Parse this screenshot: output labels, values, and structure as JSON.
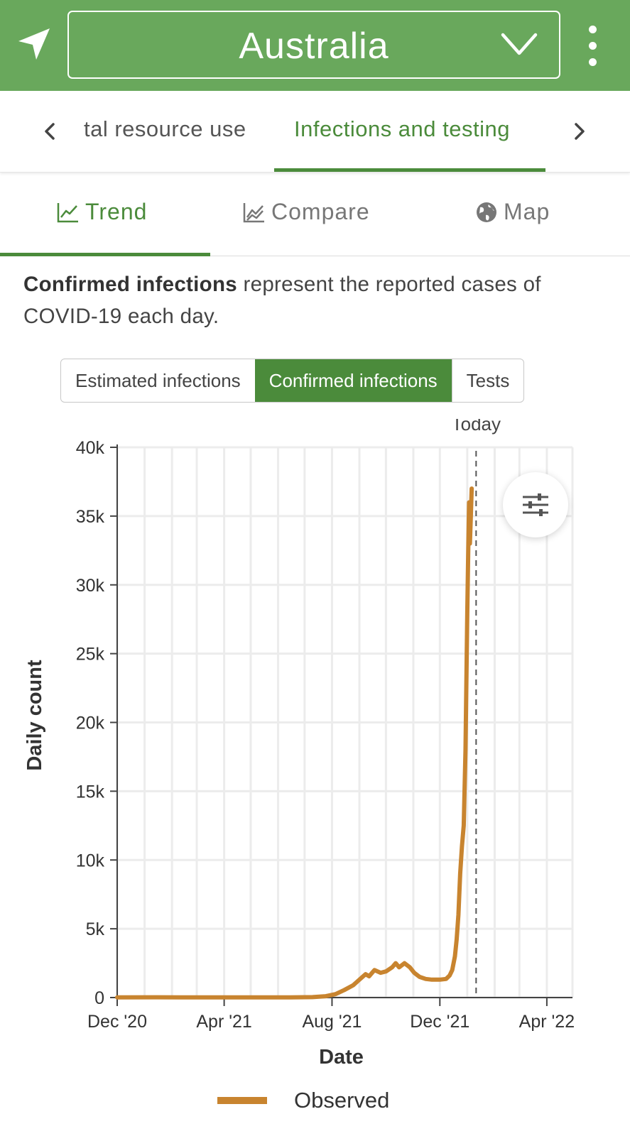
{
  "header": {
    "country": "Australia",
    "location_icon": "location-arrow-icon",
    "dropdown_icon": "chevron-down-icon",
    "menu_icon": "more-vertical-icon",
    "bar_color": "#69a85c"
  },
  "category_tabs": {
    "items": [
      {
        "label": "tal resource use",
        "active": false
      },
      {
        "label": "Infections and testing",
        "active": true
      }
    ],
    "prev_icon": "chevron-left-icon",
    "next_icon": "chevron-right-icon"
  },
  "view_tabs": {
    "items": [
      {
        "label": "Trend",
        "icon": "line-chart-icon",
        "active": true
      },
      {
        "label": "Compare",
        "icon": "multi-line-chart-icon",
        "active": false
      },
      {
        "label": "Map",
        "icon": "globe-icon",
        "active": false
      }
    ],
    "accent": "#4b8b3b"
  },
  "description": {
    "bold": "Confirmed infections",
    "rest": " represent the reported cases of COVID-19 each day."
  },
  "metric_selector": {
    "options": [
      "Estimated infections",
      "Confirmed infections",
      "Tests"
    ],
    "selected": "Confirmed infections"
  },
  "chart_controls": {
    "filter_icon": "sliders-icon"
  },
  "chart_data": {
    "type": "line",
    "xlabel": "Date",
    "ylabel": "Daily count",
    "x_ticks": [
      "Dec '20",
      "Apr '21",
      "Aug '21",
      "Dec '21",
      "Apr '22"
    ],
    "y_ticks": [
      "0",
      "5k",
      "10k",
      "15k",
      "20k",
      "25k",
      "30k",
      "35k",
      "40k"
    ],
    "ylim": [
      0,
      40000
    ],
    "xlim": [
      "2020-12-01",
      "2022-04-30"
    ],
    "today_marker": {
      "label": "Today",
      "date": "2022-01-11"
    },
    "grid": true,
    "legend_placement": "bottom",
    "series": [
      {
        "name": "Observed",
        "color": "#c8842f",
        "points": [
          [
            "2020-12-01",
            10
          ],
          [
            "2021-01-15",
            20
          ],
          [
            "2021-03-01",
            10
          ],
          [
            "2021-05-01",
            10
          ],
          [
            "2021-06-15",
            15
          ],
          [
            "2021-07-10",
            30
          ],
          [
            "2021-07-25",
            100
          ],
          [
            "2021-08-05",
            250
          ],
          [
            "2021-08-15",
            550
          ],
          [
            "2021-08-25",
            900
          ],
          [
            "2021-09-01",
            1300
          ],
          [
            "2021-09-08",
            1700
          ],
          [
            "2021-09-12",
            1550
          ],
          [
            "2021-09-18",
            2000
          ],
          [
            "2021-09-25",
            1800
          ],
          [
            "2021-10-01",
            1900
          ],
          [
            "2021-10-08",
            2200
          ],
          [
            "2021-10-12",
            2500
          ],
          [
            "2021-10-16",
            2200
          ],
          [
            "2021-10-22",
            2500
          ],
          [
            "2021-10-28",
            2200
          ],
          [
            "2021-11-02",
            1800
          ],
          [
            "2021-11-08",
            1500
          ],
          [
            "2021-11-15",
            1350
          ],
          [
            "2021-11-22",
            1300
          ],
          [
            "2021-12-01",
            1300
          ],
          [
            "2021-12-08",
            1350
          ],
          [
            "2021-12-12",
            1600
          ],
          [
            "2021-12-15",
            2000
          ],
          [
            "2021-12-18",
            3000
          ],
          [
            "2021-12-20",
            4200
          ],
          [
            "2021-12-22",
            6000
          ],
          [
            "2021-12-24",
            9000
          ],
          [
            "2021-12-26",
            11000
          ],
          [
            "2021-12-28",
            12500
          ],
          [
            "2021-12-30",
            18000
          ],
          [
            "2022-01-01",
            28000
          ],
          [
            "2022-01-02",
            32000
          ],
          [
            "2022-01-03",
            36000
          ],
          [
            "2022-01-04",
            33000
          ],
          [
            "2022-01-05",
            35000
          ],
          [
            "2022-01-06",
            37000
          ]
        ]
      }
    ]
  }
}
